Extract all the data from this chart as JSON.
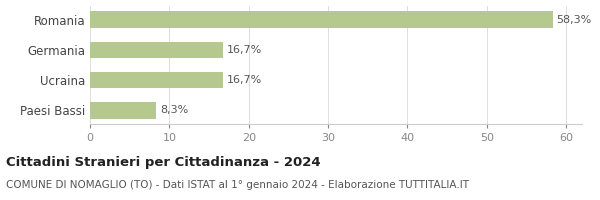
{
  "categories": [
    "Paesi Bassi",
    "Ucraina",
    "Germania",
    "Romania"
  ],
  "values": [
    8.3,
    16.7,
    16.7,
    58.3
  ],
  "labels": [
    "8,3%",
    "16,7%",
    "16,7%",
    "58,3%"
  ],
  "bar_color": "#b5c98e",
  "title": "Cittadini Stranieri per Cittadinanza - 2024",
  "subtitle": "COMUNE DI NOMAGLIO (TO) - Dati ISTAT al 1° gennaio 2024 - Elaborazione TUTTITALIA.IT",
  "xlim": [
    0,
    62
  ],
  "xticks": [
    0,
    10,
    20,
    30,
    40,
    50,
    60
  ],
  "background_color": "#ffffff",
  "title_fontsize": 9.5,
  "subtitle_fontsize": 7.5,
  "label_fontsize": 8,
  "tick_fontsize": 8,
  "ytick_fontsize": 8.5
}
